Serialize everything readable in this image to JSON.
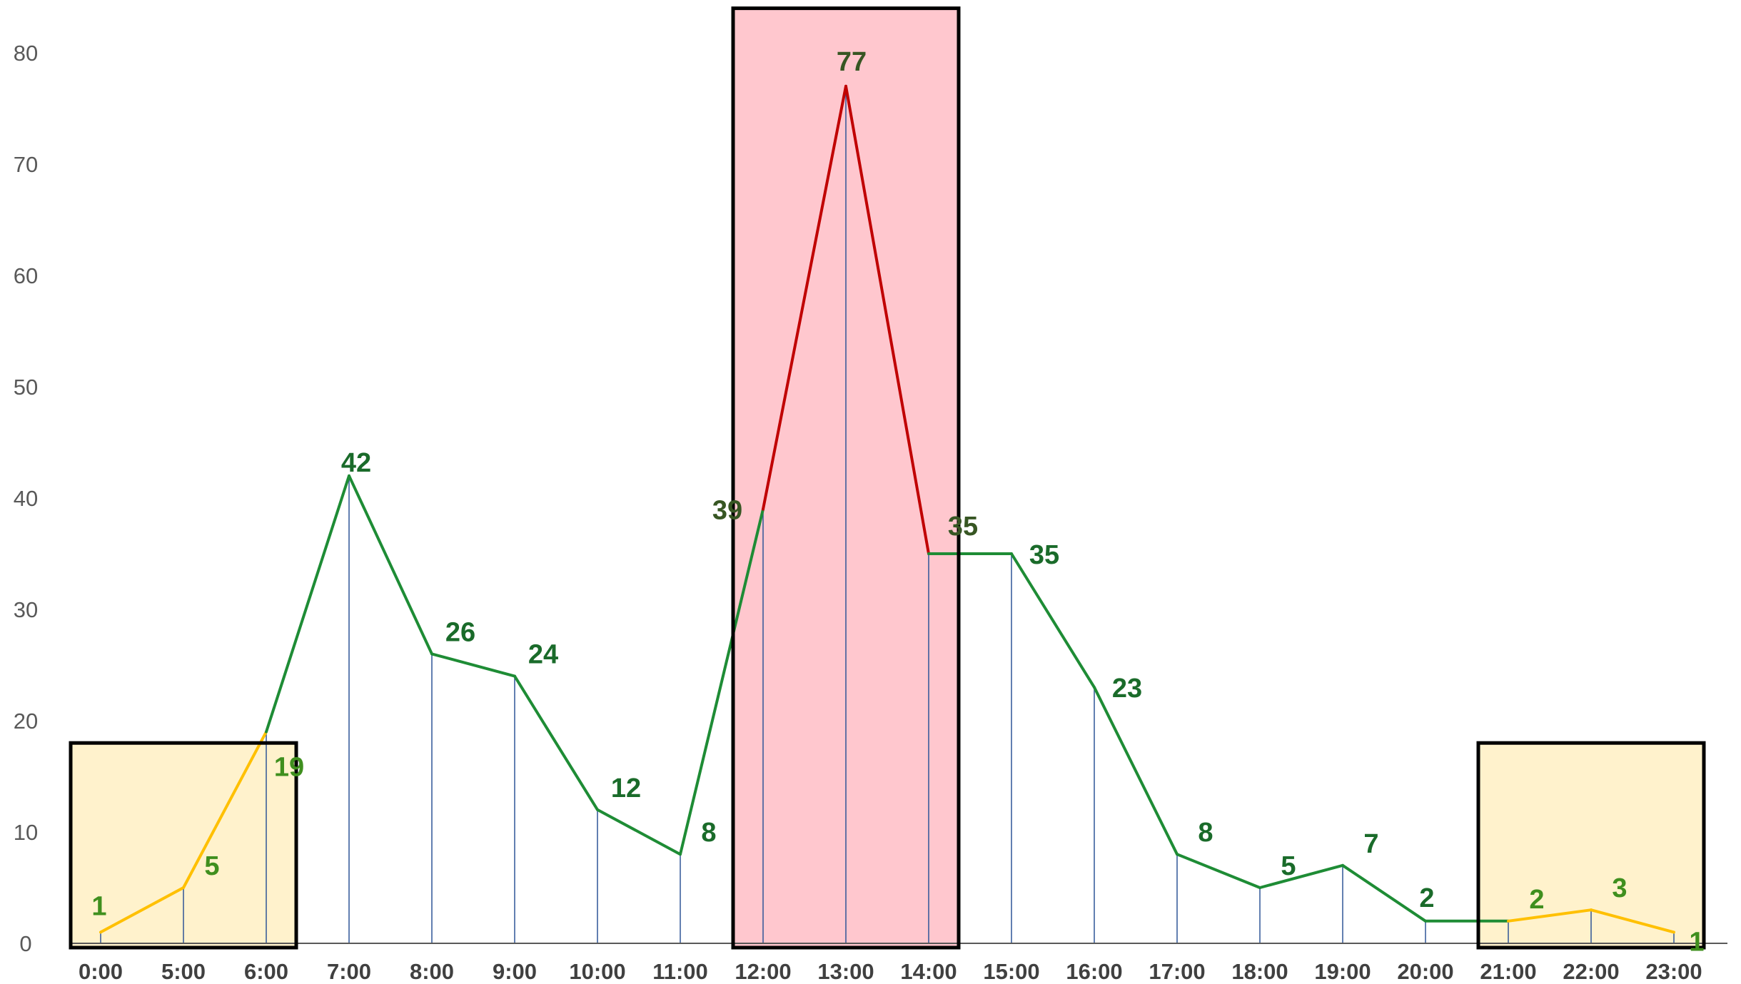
{
  "chart_data": {
    "type": "line",
    "categories": [
      "0:00",
      "5:00",
      "6:00",
      "7:00",
      "8:00",
      "9:00",
      "10:00",
      "11:00",
      "12:00",
      "13:00",
      "14:00",
      "15:00",
      "16:00",
      "17:00",
      "18:00",
      "19:00",
      "20:00",
      "21:00",
      "22:00",
      "23:00"
    ],
    "values": [
      1,
      5,
      19,
      42,
      26,
      24,
      12,
      8,
      39,
      77,
      35,
      35,
      23,
      8,
      5,
      7,
      2,
      2,
      3,
      1
    ],
    "data_labels": [
      "1",
      "5",
      "19",
      "42",
      "26",
      "24",
      "12",
      "8",
      "39",
      "77",
      "35",
      "35",
      "23",
      "8",
      "5",
      "7",
      "2",
      "2",
      "3",
      "1"
    ],
    "ylim": [
      0,
      80
    ],
    "yticks": [
      "0",
      "10",
      "20",
      "30",
      "40",
      "50",
      "60",
      "70",
      "80"
    ],
    "title": "",
    "xlabel": "",
    "ylabel": "",
    "grid": false,
    "highlight_regions": [
      {
        "from_index": 0,
        "to_index": 2,
        "level": "low",
        "top_value": 18,
        "fill": "#fff2cc",
        "line_color": "#ffc000"
      },
      {
        "from_index": 8,
        "to_index": 10,
        "level": "peak",
        "top_value": 84,
        "fill": "#ffc7ce",
        "line_color": "#c00000"
      },
      {
        "from_index": 17,
        "to_index": 19,
        "level": "low",
        "top_value": 18,
        "fill": "#fff2cc",
        "line_color": "#ffc000"
      }
    ],
    "colors": {
      "line": "#1e8c35",
      "label": "#1a6b2a",
      "label_low": "#3f8f1e",
      "label_peak": "#375623",
      "drop_line": "#2f5597",
      "region_border": "#000000",
      "axis_text": "#595959"
    }
  }
}
